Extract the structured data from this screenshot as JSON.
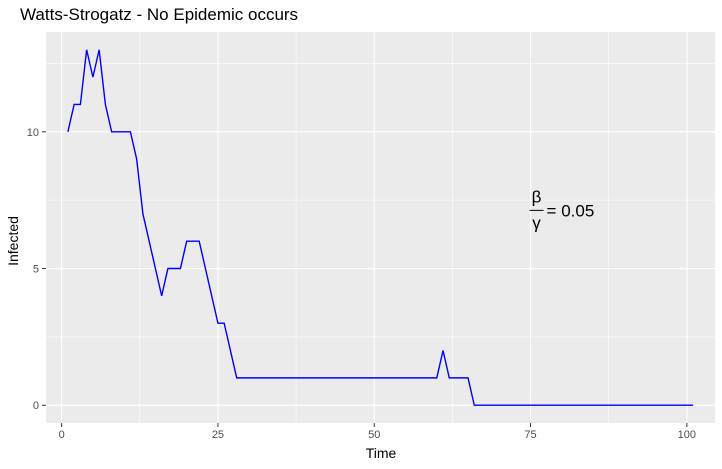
{
  "chart_data": {
    "type": "line",
    "title": "Watts-Strogatz - No Epidemic occurs",
    "xlabel": "Time",
    "ylabel": "Infected",
    "xlim": [
      -2.5,
      104.5
    ],
    "ylim": [
      -0.65,
      13.65
    ],
    "x_ticks": [
      0,
      25,
      50,
      75,
      100
    ],
    "x_tick_labels": [
      "0",
      "25",
      "50",
      "75",
      "100"
    ],
    "y_ticks": [
      0,
      5,
      10
    ],
    "y_tick_labels": [
      "0",
      "5",
      "10"
    ],
    "grid": true,
    "background": "#ebebeb",
    "grid_color": "#ffffff",
    "line_color": "#0000ff",
    "annotation": {
      "numerator": "β",
      "denominator": "γ",
      "rhs": "= 0.05",
      "x": 75,
      "y": 7.2
    },
    "series": [
      {
        "x": [
          1,
          2,
          3,
          4,
          5,
          6,
          7,
          8,
          9,
          10,
          11,
          12,
          13,
          14,
          15,
          16,
          17,
          18,
          19,
          20,
          21,
          22,
          23,
          24,
          25,
          26,
          27,
          28,
          29,
          30,
          31,
          32,
          33,
          34,
          35,
          36,
          37,
          38,
          39,
          40,
          41,
          42,
          43,
          44,
          45,
          46,
          47,
          48,
          49,
          50,
          51,
          52,
          53,
          54,
          55,
          56,
          57,
          58,
          59,
          60,
          61,
          62,
          63,
          64,
          65,
          66,
          67,
          68,
          69,
          70,
          71,
          72,
          73,
          74,
          75,
          76,
          77,
          78,
          79,
          80,
          81,
          82,
          83,
          84,
          85,
          86,
          87,
          88,
          89,
          90,
          91,
          92,
          93,
          94,
          95,
          96,
          97,
          98,
          99,
          100,
          101
        ],
        "y": [
          10,
          11,
          11,
          13,
          12,
          13,
          11,
          10,
          10,
          10,
          10,
          9,
          7,
          6,
          5,
          4,
          5,
          5,
          5,
          6,
          6,
          6,
          5,
          4,
          3,
          3,
          2,
          1,
          1,
          1,
          1,
          1,
          1,
          1,
          1,
          1,
          1,
          1,
          1,
          1,
          1,
          1,
          1,
          1,
          1,
          1,
          1,
          1,
          1,
          1,
          1,
          1,
          1,
          1,
          1,
          1,
          1,
          1,
          1,
          1,
          2,
          1,
          1,
          1,
          1,
          0,
          0,
          0,
          0,
          0,
          0,
          0,
          0,
          0,
          0,
          0,
          0,
          0,
          0,
          0,
          0,
          0,
          0,
          0,
          0,
          0,
          0,
          0,
          0,
          0,
          0,
          0,
          0,
          0,
          0,
          0,
          0,
          0,
          0,
          0,
          0
        ]
      }
    ]
  }
}
